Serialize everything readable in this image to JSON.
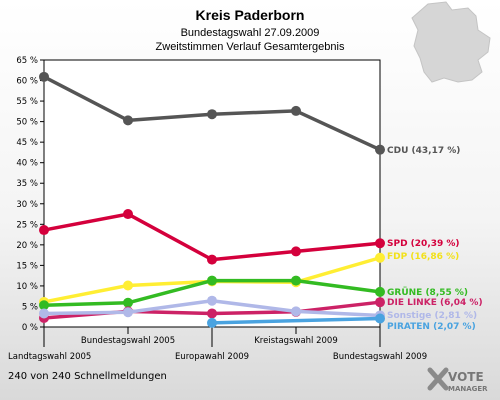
{
  "header": {
    "title": "Kreis Paderborn",
    "subtitle_1": "Bundestagswahl 27.09.2009",
    "subtitle_2": "Zweitstimmen Verlauf Gesamtergebnis"
  },
  "footer": {
    "note": "240 von 240 Schnellmeldungen"
  },
  "logo": {
    "line1": "VOTE",
    "line2": "MANAGER"
  },
  "chart_data": {
    "type": "line",
    "title": "Kreis Paderborn",
    "subtitle": "Bundestagswahl 27.09.2009 — Zweitstimmen Verlauf Gesamtergebnis",
    "x": [
      "Landtagswahl 2005",
      "Bundestagswahl 2005",
      "Europawahl 2009",
      "Kreistagswahl 2009",
      "Bundestagswahl 2009"
    ],
    "ylim": [
      0,
      65
    ],
    "yticks": [
      0,
      5,
      10,
      15,
      20,
      25,
      30,
      35,
      40,
      45,
      50,
      55,
      60,
      65
    ],
    "ytick_suffix": " %",
    "grid": false,
    "series": [
      {
        "name": "CDU",
        "label": "CDU (43,17 %)",
        "color": "#555555",
        "values": [
          60.9,
          50.3,
          51.8,
          52.6,
          43.17
        ]
      },
      {
        "name": "SPD",
        "label": "SPD (20,39 %)",
        "color": "#d4003c",
        "values": [
          23.6,
          27.5,
          16.4,
          18.4,
          20.39
        ]
      },
      {
        "name": "FDP",
        "label": "FDP (16,86 %)",
        "color": "#ffee33",
        "values": [
          6.1,
          10.1,
          11.1,
          10.9,
          16.86
        ]
      },
      {
        "name": "GRÜNE",
        "label": "GRÜNE (8,55 %)",
        "color": "#33bb22",
        "values": [
          5.3,
          5.9,
          11.3,
          11.3,
          8.55
        ]
      },
      {
        "name": "DIE LINKE",
        "label": "DIE LINKE (6,04 %)",
        "color": "#cc2266",
        "values": [
          2.2,
          3.8,
          3.3,
          3.7,
          6.04
        ]
      },
      {
        "name": "Sonstige",
        "label": "Sonstige (2,81 %)",
        "color": "#b0b8e8",
        "values": [
          3.3,
          3.6,
          6.4,
          3.8,
          2.81
        ]
      },
      {
        "name": "PIRATEN",
        "label": "PIRATEN (2,07 %)",
        "color": "#4aa3e0",
        "values": [
          null,
          null,
          1.0,
          null,
          2.07
        ]
      }
    ]
  }
}
